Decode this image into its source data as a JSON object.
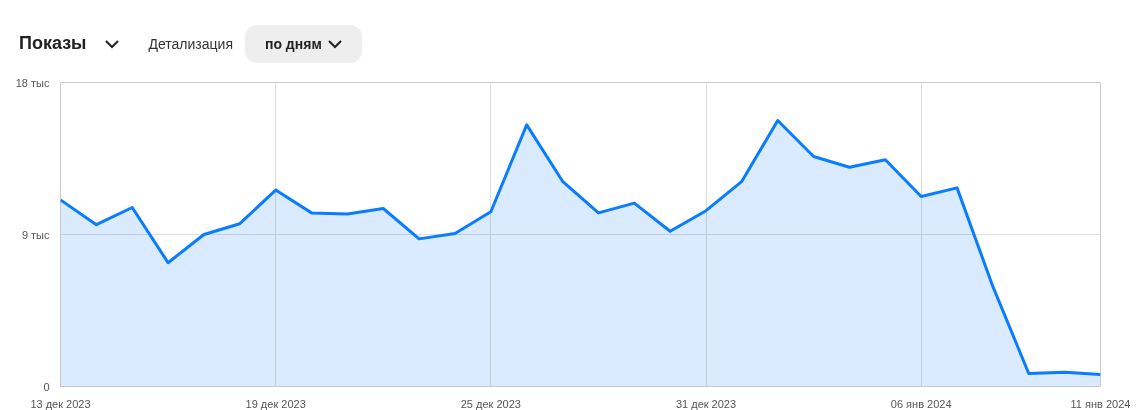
{
  "chart_data": {
    "type": "area",
    "title": "Показы",
    "annotations": [
      "Детализация",
      "по дням"
    ],
    "x": [
      "2023-12-13",
      "2023-12-14",
      "2023-12-15",
      "2023-12-16",
      "2023-12-17",
      "2023-12-18",
      "2023-12-19",
      "2023-12-20",
      "2023-12-21",
      "2023-12-22",
      "2023-12-23",
      "2023-12-24",
      "2023-12-25",
      "2023-12-26",
      "2023-12-27",
      "2023-12-28",
      "2023-12-29",
      "2023-12-30",
      "2023-12-31",
      "2024-01-01",
      "2024-01-02",
      "2024-01-03",
      "2024-01-04",
      "2024-01-05",
      "2024-01-06",
      "2024-01-07",
      "2024-01-08",
      "2024-01-09",
      "2024-01-10",
      "2024-01-11"
    ],
    "series": [
      {
        "color": "#0a7cff",
        "values": [
          11.05,
          9.58,
          10.6,
          7.33,
          9.0,
          9.64,
          11.63,
          10.28,
          10.22,
          10.54,
          8.74,
          9.06,
          10.35,
          15.49,
          12.15,
          10.28,
          10.86,
          9.19,
          10.41,
          12.15,
          15.75,
          13.62,
          12.98,
          13.43,
          11.25,
          11.76,
          5.91,
          0.77,
          0.84,
          0.71
        ]
      }
    ],
    "xlim": [
      "2023-12-13",
      "2024-01-11"
    ],
    "xticks": [
      {
        "value": "2023-12-13",
        "label": "13 дек 2023"
      },
      {
        "value": "2023-12-19",
        "label": "19 дек 2023"
      },
      {
        "value": "2023-12-25",
        "label": "25 дек 2023"
      },
      {
        "value": "2023-12-31",
        "label": "31 дек 2023"
      },
      {
        "value": "2024-01-06",
        "label": "06 янв 2024"
      },
      {
        "value": "2024-01-11",
        "label": "11 янв 2024"
      }
    ],
    "ylim": [
      0,
      18
    ],
    "yticks": [
      0,
      {
        "value": 9,
        "label": "9 тыс"
      },
      {
        "value": 18,
        "label": "18 тыс"
      }
    ],
    "grid": true
  }
}
